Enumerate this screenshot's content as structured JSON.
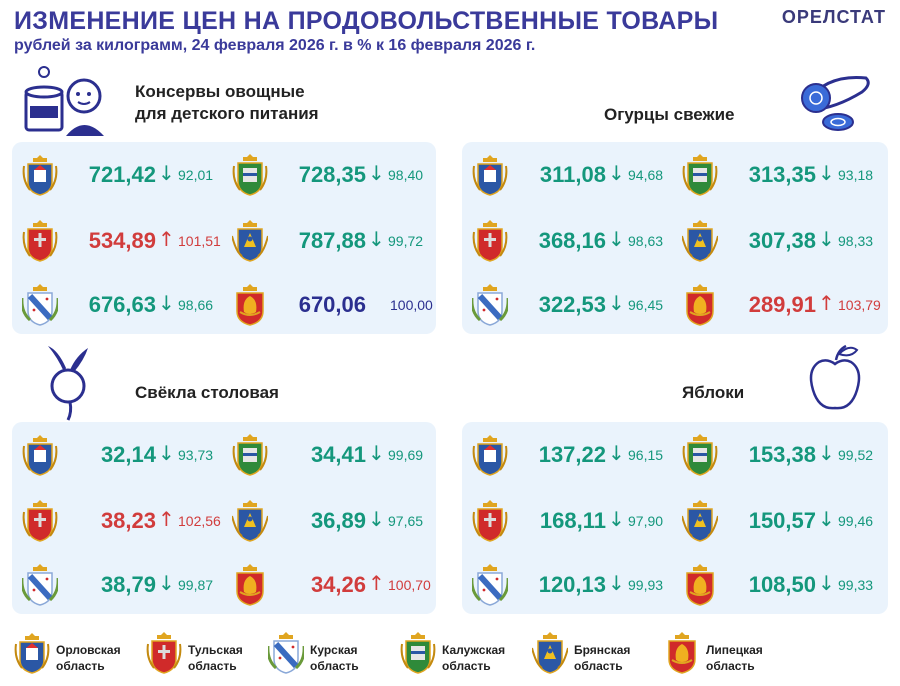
{
  "header": {
    "title": "ИЗМЕНЕНИЕ ЦЕН НА ПРОДОВОЛЬСТВЕННЫЕ ТОВАРЫ",
    "subtitle": "рублей за килограмм, 24 февраля 2026 г. в % к 16 февраля 2026 г.",
    "brand": "ОРЕЛСТАТ"
  },
  "colors": {
    "down": "#14977c",
    "up": "#d13c3c",
    "same": "#2b2f8f",
    "panel": "#eaf3fc",
    "title": "#3a3a9a"
  },
  "icons": {
    "orel": "orel-coat-icon",
    "tula": "tula-coat-icon",
    "kursk": "kursk-coat-icon",
    "kaluga": "kaluga-coat-icon",
    "bryansk": "bryansk-coat-icon",
    "lipetsk": "lipetsk-coat-icon"
  },
  "sections": [
    {
      "title": "Консервы овощные для детского питания",
      "title_line1": "Консервы овощные",
      "title_line2": "для детского питания",
      "icon": "baby-food-icon",
      "cells": [
        {
          "region": "orel",
          "price": "721,42",
          "trend": "down",
          "arrow": "↓",
          "pct": "92,01"
        },
        {
          "region": "kaluga",
          "price": "728,35",
          "trend": "down",
          "arrow": "↓",
          "pct": "98,40"
        },
        {
          "region": "tula",
          "price": "534,89",
          "trend": "up",
          "arrow": "↑",
          "pct": "101,51"
        },
        {
          "region": "bryansk",
          "price": "787,88",
          "trend": "down",
          "arrow": "↓",
          "pct": "99,72"
        },
        {
          "region": "kursk",
          "price": "676,63",
          "trend": "down",
          "arrow": "↓",
          "pct": "98,66"
        },
        {
          "region": "lipetsk",
          "price": "670,06",
          "trend": "same",
          "arrow": "",
          "pct": "100,00"
        }
      ]
    },
    {
      "title": "Огурцы свежие",
      "icon": "cucumber-icon",
      "cells": [
        {
          "region": "orel",
          "price": "311,08",
          "trend": "down",
          "arrow": "↓",
          "pct": "94,68"
        },
        {
          "region": "kaluga",
          "price": "313,35",
          "trend": "down",
          "arrow": "↓",
          "pct": "93,18"
        },
        {
          "region": "tula",
          "price": "368,16",
          "trend": "down",
          "arrow": "↓",
          "pct": "98,63"
        },
        {
          "region": "bryansk",
          "price": "307,38",
          "trend": "down",
          "arrow": "↓",
          "pct": "98,33"
        },
        {
          "region": "kursk",
          "price": "322,53",
          "trend": "down",
          "arrow": "↓",
          "pct": "96,45"
        },
        {
          "region": "lipetsk",
          "price": "289,91",
          "trend": "up",
          "arrow": "↑",
          "pct": "103,79"
        }
      ]
    },
    {
      "title": "Свёкла столовая",
      "icon": "beet-icon",
      "cells": [
        {
          "region": "orel",
          "price": "32,14",
          "trend": "down",
          "arrow": "↓",
          "pct": "93,73"
        },
        {
          "region": "kaluga",
          "price": "34,41",
          "trend": "down",
          "arrow": "↓",
          "pct": "99,69"
        },
        {
          "region": "tula",
          "price": "38,23",
          "trend": "up",
          "arrow": "↑",
          "pct": "102,56"
        },
        {
          "region": "bryansk",
          "price": "36,89",
          "trend": "down",
          "arrow": "↓",
          "pct": "97,65"
        },
        {
          "region": "kursk",
          "price": "38,79",
          "trend": "down",
          "arrow": "↓",
          "pct": "99,87"
        },
        {
          "region": "lipetsk",
          "price": "34,26",
          "trend": "up",
          "arrow": "↑",
          "pct": "100,70"
        }
      ]
    },
    {
      "title": "Яблоки",
      "icon": "apple-icon",
      "cells": [
        {
          "region": "orel",
          "price": "137,22",
          "trend": "down",
          "arrow": "↓",
          "pct": "96,15"
        },
        {
          "region": "kaluga",
          "price": "153,38",
          "trend": "down",
          "arrow": "↓",
          "pct": "99,52"
        },
        {
          "region": "tula",
          "price": "168,11",
          "trend": "down",
          "arrow": "↓",
          "pct": "97,90"
        },
        {
          "region": "bryansk",
          "price": "150,57",
          "trend": "down",
          "arrow": "↓",
          "pct": "99,46"
        },
        {
          "region": "kursk",
          "price": "120,13",
          "trend": "down",
          "arrow": "↓",
          "pct": "99,93"
        },
        {
          "region": "lipetsk",
          "price": "108,50",
          "trend": "down",
          "arrow": "↓",
          "pct": "99,33"
        }
      ]
    }
  ],
  "legend": [
    {
      "region": "orel",
      "line1": "Орловская",
      "line2": "область"
    },
    {
      "region": "tula",
      "line1": "Тульская",
      "line2": "область"
    },
    {
      "region": "kursk",
      "line1": "Курская",
      "line2": "область"
    },
    {
      "region": "kaluga",
      "line1": "Калужская",
      "line2": "область"
    },
    {
      "region": "bryansk",
      "line1": "Брянская",
      "line2": "область"
    },
    {
      "region": "lipetsk",
      "line1": "Липецкая",
      "line2": "область"
    }
  ]
}
